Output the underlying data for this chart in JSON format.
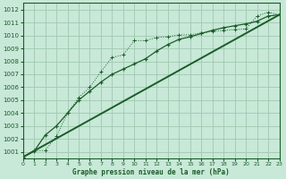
{
  "title": "Graphe pression niveau de la mer (hPa)",
  "bg_color": "#c8e8d8",
  "grid_color": "#a0c8b0",
  "line_color": "#1a5c28",
  "xlim": [
    0,
    23
  ],
  "ylim": [
    1000.5,
    1012.5
  ],
  "yticks": [
    1001,
    1002,
    1003,
    1004,
    1005,
    1006,
    1007,
    1008,
    1009,
    1010,
    1011,
    1012
  ],
  "xticks": [
    0,
    1,
    2,
    3,
    4,
    5,
    6,
    7,
    8,
    9,
    10,
    11,
    12,
    13,
    14,
    15,
    16,
    17,
    18,
    19,
    20,
    21,
    22,
    23
  ],
  "series1_x": [
    0,
    1,
    2,
    3,
    4,
    5,
    6,
    7,
    8,
    9,
    10,
    11,
    12,
    13,
    14,
    15,
    16,
    17,
    18,
    19,
    20,
    21,
    22,
    23
  ],
  "series1_y": [
    1000.6,
    1001.1,
    1001.1,
    1002.2,
    1004.0,
    1005.2,
    1006.0,
    1007.2,
    1008.3,
    1008.5,
    1009.6,
    1009.6,
    1009.85,
    1009.9,
    1010.05,
    1010.05,
    1010.2,
    1010.3,
    1010.4,
    1010.45,
    1010.5,
    1011.5,
    1011.8,
    1011.6
  ],
  "series2_x": [
    0,
    1,
    2,
    3,
    4,
    5,
    6,
    7,
    8,
    9,
    10,
    11,
    12,
    13,
    14,
    15,
    16,
    17,
    18,
    19,
    20,
    21,
    22,
    23
  ],
  "series2_y": [
    1000.6,
    1001.05,
    1002.3,
    1003.0,
    1004.0,
    1005.0,
    1005.7,
    1006.4,
    1007.0,
    1007.4,
    1007.8,
    1008.2,
    1008.8,
    1009.3,
    1009.7,
    1009.9,
    1010.15,
    1010.4,
    1010.6,
    1010.75,
    1010.9,
    1011.1,
    1011.5,
    1011.6
  ],
  "series3_x": [
    0,
    23
  ],
  "series3_y": [
    1000.6,
    1011.6
  ]
}
